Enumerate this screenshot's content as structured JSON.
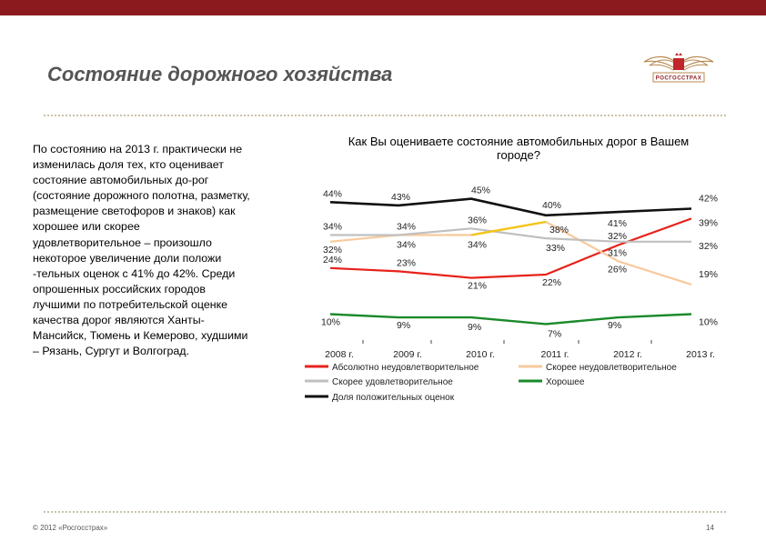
{
  "page": {
    "title": "Состояние дорожного хозяйства",
    "logo_text": "РОСГОССТРАХ",
    "body_text": "По состоянию на 2013 г. практически не изменилась доля тех, кто оценивает состояние автомобильных до-рог (состояние дорожного полотна, разметку, размещение светофоров и знаков) как хорошее или скорее удовлетворительное – произошло некоторое увеличение доли положи -тельных оценок с 41% до 42%. Среди опрошенных российских городов лучшими по потребительской оценке качества дорог являются Ханты-Мансийск, Тюмень и Кемерово, худшими – Рязань, Сургут и Волгоград.",
    "footer": "© 2012 «Росгосстрах»",
    "page_number": "14"
  },
  "chart_data": {
    "type": "line",
    "title": "Как Вы оцениваете состояние автомобильных дорог в Вашем городе?",
    "categories": [
      "2008 г.",
      "2009 г.",
      "2010 г.",
      "2011 г.",
      "2012 г.",
      "2013 г."
    ],
    "ylim": [
      0,
      50
    ],
    "grid": false,
    "legend_position": "bottom",
    "series": [
      {
        "name": "Абсолютно неудовлетворительное",
        "color": "#e8221b",
        "values": [
          24,
          23,
          21,
          22,
          31,
          39
        ]
      },
      {
        "name": "Скорее неудовлетворительное",
        "color": "#f8c99c",
        "values": [
          32,
          34,
          34,
          38,
          26,
          19
        ]
      },
      {
        "name": "Скорее удовлетворительное",
        "color": "#c0c0c0",
        "values": [
          34,
          34,
          36,
          33,
          32,
          32
        ]
      },
      {
        "name": "Хорошее",
        "color": "#1a8a2a",
        "values": [
          10,
          9,
          9,
          7,
          9,
          10
        ]
      },
      {
        "name": "Доля положительных оценок",
        "color": "#111111",
        "values": [
          44,
          43,
          45,
          40,
          41,
          42
        ]
      }
    ],
    "highlight": {
      "from": "2010 г.",
      "to": "2011 г.",
      "color": "#f5c518"
    }
  }
}
